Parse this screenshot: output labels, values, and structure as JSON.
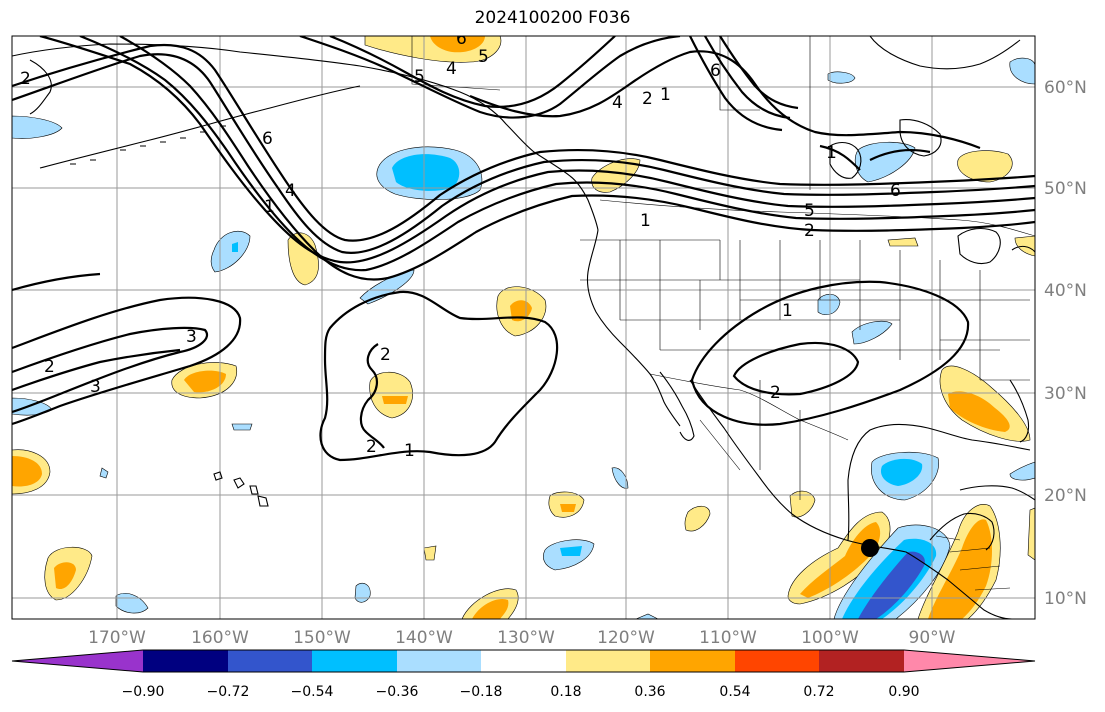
{
  "title": "2024100200 F036",
  "latitude_labels": [
    "60°N",
    "50°N",
    "40°N",
    "30°N",
    "20°N",
    "10°N"
  ],
  "longitude_labels": [
    "170°W",
    "160°W",
    "150°W",
    "140°W",
    "130°W",
    "120°W",
    "110°W",
    "100°W",
    "90°W"
  ],
  "colorbar": {
    "tick_labels": [
      "−0.90",
      "−0.72",
      "−0.54",
      "−0.36",
      "−0.18",
      "0.18",
      "0.36",
      "0.54",
      "0.72",
      "0.90"
    ],
    "colors": [
      "#9933cc",
      "#000080",
      "#3355cc",
      "#00bfff",
      "#aadeff",
      "#ffffff",
      "#ffea88",
      "#ffa500",
      "#ff4500",
      "#b22222",
      "#ff88aa"
    ]
  },
  "contour_labels": [
    "1",
    "2",
    "3",
    "4",
    "5",
    "6"
  ],
  "marker": "storm-center-dot"
}
